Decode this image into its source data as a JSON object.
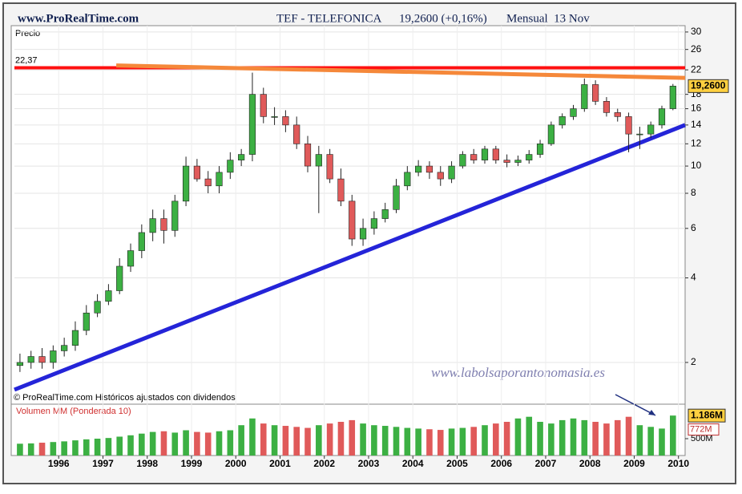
{
  "header": {
    "site": "www.ProRealTime.com",
    "title": "TEF - TELEFONICA",
    "price": "19,2600 (+0,16%)",
    "period": "Mensual  13 Nov"
  },
  "chart_data": {
    "type": "candlestick",
    "y_label": "Precio",
    "log_scale": true,
    "x": [
      1995.125,
      1995.375,
      1995.625,
      1995.875,
      1996.125,
      1996.375,
      1996.625,
      1996.875,
      1997.125,
      1997.375,
      1997.625,
      1997.875,
      1998.125,
      1998.375,
      1998.625,
      1998.875,
      1999.125,
      1999.375,
      1999.625,
      1999.875,
      2000.125,
      2000.375,
      2000.625,
      2000.875,
      2001.125,
      2001.375,
      2001.625,
      2001.875,
      2002.125,
      2002.375,
      2002.625,
      2002.875,
      2003.125,
      2003.375,
      2003.625,
      2003.875,
      2004.125,
      2004.375,
      2004.625,
      2004.875,
      2005.125,
      2005.375,
      2005.625,
      2005.875,
      2006.125,
      2006.375,
      2006.625,
      2006.875,
      2007.125,
      2007.375,
      2007.625,
      2007.875,
      2008.125,
      2008.375,
      2008.625,
      2008.875,
      2009.125,
      2009.375,
      2009.625,
      2009.875
    ],
    "open": [
      1.95,
      2.0,
      2.1,
      2.0,
      2.2,
      2.3,
      2.6,
      3.0,
      3.3,
      3.6,
      4.4,
      5.0,
      5.8,
      6.5,
      5.9,
      7.5,
      10,
      9,
      8.5,
      9.5,
      10.5,
      11,
      18,
      15,
      15,
      14,
      12,
      10,
      11,
      9,
      7.5,
      5.5,
      6.0,
      6.5,
      7.0,
      8.5,
      9.5,
      10,
      9.5,
      9,
      10,
      11,
      10.5,
      11.5,
      10.5,
      10.3,
      10.5,
      11,
      12,
      14,
      15,
      16,
      19.5,
      17,
      15.5,
      15,
      13,
      13,
      14,
      16
    ],
    "high": [
      2.15,
      2.2,
      2.25,
      2.3,
      2.45,
      2.8,
      3.2,
      3.5,
      3.8,
      4.7,
      5.3,
      6.2,
      7.0,
      7.0,
      7.9,
      10.8,
      10.6,
      9.6,
      10.0,
      11.2,
      11.5,
      21.5,
      19.0,
      16.2,
      15.8,
      15.0,
      12.8,
      11.8,
      11.5,
      9.8,
      7.9,
      6.5,
      6.9,
      7.4,
      9.0,
      10.0,
      10.5,
      10.4,
      10.0,
      10.4,
      11.3,
      11.5,
      11.8,
      11.8,
      11.0,
      10.9,
      11.4,
      12.4,
      14.4,
      15.4,
      16.5,
      20.5,
      20.2,
      17.6,
      16.0,
      15.5,
      13.8,
      14.4,
      16.4,
      19.6
    ],
    "low": [
      1.85,
      1.9,
      1.9,
      1.9,
      2.1,
      2.2,
      2.5,
      2.9,
      3.2,
      3.5,
      4.2,
      4.7,
      5.4,
      5.3,
      5.6,
      7.2,
      8.8,
      8.0,
      8.0,
      9.0,
      10.0,
      10.4,
      14.2,
      14.0,
      13.2,
      11.5,
      9.5,
      6.8,
      8.7,
      7.2,
      5.2,
      5.2,
      5.7,
      6.3,
      6.8,
      8.2,
      9.2,
      9.0,
      8.5,
      8.7,
      9.8,
      10.2,
      10.2,
      10.2,
      9.9,
      10.0,
      10.2,
      10.7,
      11.8,
      13.6,
      14.6,
      15.6,
      16.5,
      15.0,
      14.4,
      11.2,
      11.5,
      12.6,
      13.6,
      15.8
    ],
    "close": [
      2.0,
      2.1,
      2.0,
      2.2,
      2.3,
      2.6,
      3.0,
      3.3,
      3.6,
      4.4,
      5.0,
      5.8,
      6.5,
      5.9,
      7.5,
      10,
      9,
      8.5,
      9.5,
      10.5,
      11,
      18,
      15,
      15,
      14,
      12,
      10,
      11,
      9,
      7.5,
      5.5,
      6.0,
      6.5,
      7.0,
      8.5,
      9.5,
      10,
      9.5,
      9,
      10,
      11,
      10.5,
      11.5,
      10.5,
      10.3,
      10.5,
      11,
      12,
      14,
      15,
      16,
      19.5,
      17,
      15.5,
      15,
      13,
      13,
      14,
      16,
      19.26
    ],
    "up_color": "#3cb043",
    "down_color": "#e05a5a",
    "xlim": [
      1995,
      2010.15
    ],
    "xticks": [
      1996,
      1997,
      1998,
      1999,
      2000,
      2001,
      2002,
      2003,
      2004,
      2005,
      2006,
      2007,
      2008,
      2009,
      2010
    ],
    "ylim": [
      1.43,
      31.6
    ],
    "yticks": [
      2,
      4,
      6,
      8,
      10,
      12,
      14,
      16,
      18,
      22,
      26,
      30
    ],
    "grid": true,
    "hline": {
      "value": 22.37,
      "label": "22,37",
      "color": "#ff1010"
    },
    "trend_lines": [
      {
        "x": [
          1995,
          2010.15
        ],
        "y": [
          1.6,
          14
        ],
        "color": "#2424d8"
      },
      {
        "x": [
          1997.3,
          2010.15
        ],
        "y": [
          22.8,
          20.6
        ],
        "color": "#f5883a"
      }
    ],
    "last_price": {
      "value": 19.26,
      "label": "19,2600"
    },
    "volume_title": "Volumen MM (Ponderada 10)",
    "volume": [
      350,
      360,
      380,
      400,
      420,
      450,
      480,
      500,
      520,
      560,
      600,
      650,
      700,
      720,
      680,
      750,
      700,
      680,
      720,
      750,
      900,
      1100,
      950,
      900,
      880,
      850,
      820,
      900,
      950,
      1000,
      1050,
      950,
      900,
      880,
      850,
      820,
      800,
      780,
      760,
      800,
      820,
      850,
      900,
      950,
      1000,
      1100,
      1150,
      1000,
      950,
      1050,
      1100,
      1050,
      1000,
      950,
      1050,
      1150,
      900,
      850,
      800,
      1186
    ],
    "volume_ylim": [
      0,
      1500
    ],
    "volume_yticks": [
      {
        "value": 500,
        "label": "500M"
      }
    ],
    "volume_last": {
      "value": 1186,
      "label": "1.186M"
    },
    "volume_ma": {
      "value": 772,
      "label": "772M"
    },
    "watermark": "www.labolsaporantonomasia.es",
    "copyright": "© ProRealTime.com  Históricos ajustados con dividendos"
  }
}
